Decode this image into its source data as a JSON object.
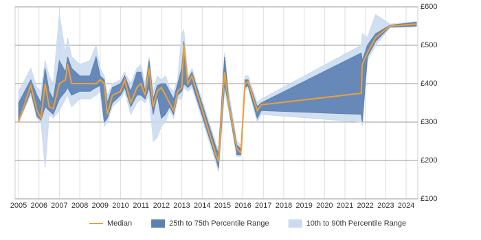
{
  "chart_data": {
    "type": "range-line",
    "x": [
      2005.0,
      2005.6,
      2005.9,
      2006.1,
      2006.3,
      2006.5,
      2006.7,
      2007.0,
      2007.3,
      2007.4,
      2007.6,
      2008.0,
      2008.5,
      2008.8,
      2009.0,
      2009.2,
      2009.35,
      2009.6,
      2010.0,
      2010.2,
      2010.5,
      2010.8,
      2011.0,
      2011.2,
      2011.4,
      2011.6,
      2011.8,
      2012.0,
      2012.2,
      2012.4,
      2012.6,
      2012.8,
      2013.0,
      2013.1,
      2013.3,
      2013.5,
      2014.7,
      2014.8,
      2015.1,
      2015.3,
      2015.7,
      2015.9,
      2016.1,
      2016.25,
      2016.7,
      2016.9,
      2021.8,
      2021.85,
      2022.1,
      2022.5,
      2023.2,
      2024.5
    ],
    "series": [
      {
        "name": "Median",
        "color": "#f0a030",
        "values": [
          300,
          395,
          330,
          310,
          400,
          340,
          335,
          400,
          410,
          450,
          400,
          400,
          400,
          400,
          410,
          400,
          320,
          370,
          380,
          410,
          350,
          390,
          400,
          370,
          440,
          340,
          380,
          390,
          370,
          350,
          330,
          380,
          390,
          500,
          400,
          420,
          210,
          200,
          430,
          350,
          230,
          220,
          400,
          405,
          330,
          345,
          375,
          450,
          480,
          520,
          550,
          555
        ]
      },
      {
        "name": "25th to 75th Percentile Range",
        "color": "#5b80b2",
        "low": [
          300,
          380,
          315,
          305,
          340,
          330,
          320,
          360,
          380,
          390,
          370,
          380,
          380,
          390,
          395,
          300,
          310,
          350,
          370,
          390,
          340,
          370,
          370,
          360,
          390,
          320,
          370,
          310,
          320,
          340,
          320,
          370,
          380,
          400,
          390,
          400,
          200,
          180,
          400,
          340,
          215,
          215,
          390,
          395,
          310,
          330,
          320,
          300,
          470,
          510,
          548,
          550
        ],
        "high": [
          350,
          410,
          370,
          350,
          440,
          380,
          360,
          460,
          430,
          470,
          440,
          420,
          420,
          470,
          420,
          410,
          350,
          390,
          400,
          420,
          380,
          430,
          430,
          380,
          460,
          360,
          395,
          400,
          400,
          380,
          360,
          400,
          440,
          510,
          410,
          430,
          230,
          220,
          470,
          360,
          240,
          230,
          410,
          410,
          340,
          350,
          480,
          460,
          500,
          530,
          552,
          560
        ]
      },
      {
        "name": "10th to 90th Percentile Range",
        "color": "#c9dbee",
        "low": [
          300,
          370,
          310,
          300,
          180,
          320,
          310,
          330,
          360,
          370,
          340,
          360,
          360,
          370,
          380,
          290,
          300,
          340,
          360,
          380,
          320,
          350,
          360,
          350,
          370,
          250,
          260,
          290,
          300,
          330,
          310,
          360,
          360,
          390,
          380,
          390,
          190,
          170,
          380,
          330,
          210,
          210,
          380,
          390,
          300,
          320,
          300,
          290,
          460,
          500,
          545,
          548
        ],
        "high": [
          380,
          440,
          390,
          380,
          460,
          420,
          400,
          580,
          480,
          520,
          470,
          450,
          460,
          500,
          440,
          420,
          370,
          400,
          410,
          430,
          400,
          440,
          450,
          400,
          470,
          380,
          420,
          410,
          420,
          390,
          380,
          410,
          530,
          540,
          420,
          440,
          240,
          230,
          480,
          380,
          250,
          240,
          420,
          420,
          350,
          360,
          500,
          530,
          520,
          580,
          555,
          562
        ]
      }
    ],
    "xlim": [
      2004.83,
      2024.57
    ],
    "xticks": [
      2005,
      2006,
      2007,
      2008,
      2009,
      2010,
      2011,
      2012,
      2013,
      2014,
      2015,
      2016,
      2017,
      2018,
      2019,
      2020,
      2021,
      2022,
      2023,
      2024
    ],
    "ylim": [
      100,
      600
    ],
    "yticks": [
      {
        "value": 100,
        "label": "£100"
      },
      {
        "value": 200,
        "label": "£200"
      },
      {
        "value": 300,
        "label": "£300"
      },
      {
        "value": 400,
        "label": "£400"
      },
      {
        "value": 500,
        "label": "£500"
      },
      {
        "value": 600,
        "label": "£600"
      }
    ],
    "grid": true,
    "legend": "bottom"
  }
}
